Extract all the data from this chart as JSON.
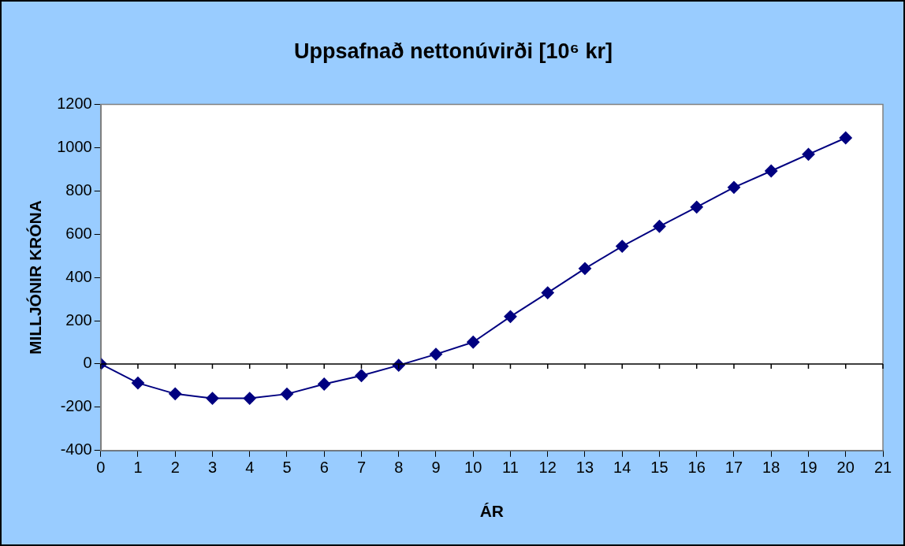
{
  "chart_data": {
    "type": "line",
    "title": "Uppsafnað nettonúvirði [10⁶ kr]",
    "xlabel": "ÁR",
    "ylabel": "MILLJÓNIR KRÓNA",
    "x": [
      0,
      1,
      2,
      3,
      4,
      5,
      6,
      7,
      8,
      9,
      10,
      11,
      12,
      13,
      14,
      15,
      16,
      17,
      18,
      19,
      20
    ],
    "series": [
      {
        "color": "#000080",
        "values": [
          0,
          -88,
          -138,
          -159,
          -159,
          -139,
          -93,
          -54,
          -6,
          45,
          101,
          219,
          329,
          441,
          544,
          636,
          725,
          816,
          892,
          969,
          1045
        ]
      }
    ],
    "xlim": [
      0,
      21
    ],
    "xticks": [
      0,
      1,
      2,
      3,
      4,
      5,
      6,
      7,
      8,
      9,
      10,
      11,
      12,
      13,
      14,
      15,
      16,
      17,
      18,
      19,
      20,
      21
    ],
    "ylim": [
      -400,
      1200
    ],
    "yticks": [
      -400,
      -200,
      0,
      200,
      400,
      600,
      800,
      1000,
      1200
    ],
    "ref_lines": [
      {
        "axis": "y",
        "value": 0,
        "color": "#000000"
      }
    ],
    "grid": false,
    "legend": false,
    "marker": "diamond",
    "line_style": "solid"
  }
}
